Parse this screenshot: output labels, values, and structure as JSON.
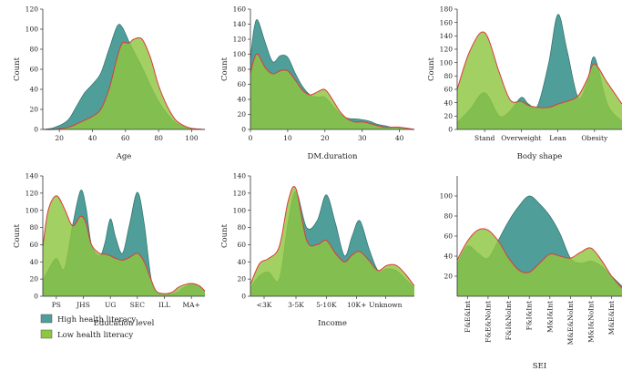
{
  "legend": {
    "high_label": "High health literacy",
    "low_label": "Low health literacy",
    "high_color": "#4f9e99",
    "low_color": "#8dc63f",
    "low_stroke": "#e0393e"
  },
  "chart_data": [
    {
      "type": "area",
      "xlabel": "Age",
      "ylabel": "Count",
      "xlim": [
        10,
        108
      ],
      "ylim": [
        0,
        120
      ],
      "xticks": [
        20,
        40,
        60,
        80,
        100
      ],
      "xtick_labels": [
        "20",
        "40",
        "60",
        "80",
        "100"
      ],
      "yticks": [
        0,
        20,
        40,
        60,
        80,
        100,
        120
      ],
      "series": [
        {
          "name": "High health literacy",
          "x": [
            10,
            17,
            25,
            30,
            35,
            40,
            45,
            50,
            55,
            58,
            62,
            65,
            70,
            75,
            80,
            85,
            90,
            95,
            100,
            108
          ],
          "y": [
            0,
            2,
            9,
            22,
            36,
            45,
            56,
            80,
            103,
            102,
            88,
            78,
            62,
            44,
            28,
            16,
            7,
            3,
            1,
            0
          ]
        },
        {
          "name": "Low health literacy",
          "x": [
            10,
            17,
            25,
            30,
            35,
            40,
            45,
            50,
            55,
            58,
            62,
            65,
            70,
            75,
            80,
            85,
            90,
            95,
            100,
            108
          ],
          "y": [
            0,
            0,
            2,
            5,
            9,
            13,
            20,
            40,
            72,
            86,
            86,
            90,
            90,
            72,
            44,
            24,
            10,
            4,
            1,
            0
          ]
        }
      ]
    },
    {
      "type": "area",
      "xlabel": "DM.duration",
      "ylabel": "Count",
      "xlim": [
        0,
        44
      ],
      "ylim": [
        0,
        160
      ],
      "xticks": [
        0,
        10,
        20,
        30,
        40
      ],
      "xtick_labels": [
        "0",
        "10",
        "20",
        "30",
        "40"
      ],
      "yticks": [
        0,
        20,
        40,
        60,
        80,
        100,
        120,
        140,
        160
      ],
      "series": [
        {
          "name": "High health literacy",
          "x": [
            0,
            1,
            2,
            4,
            6,
            8,
            10,
            12,
            14,
            16,
            18,
            20,
            22,
            24,
            26,
            28,
            30,
            32,
            34,
            36,
            38,
            40,
            44
          ],
          "y": [
            95,
            135,
            145,
            115,
            90,
            98,
            96,
            75,
            57,
            46,
            43,
            43,
            32,
            21,
            15,
            14,
            13,
            11,
            7,
            5,
            3,
            2,
            0
          ]
        },
        {
          "name": "Low health literacy",
          "x": [
            0,
            1,
            2,
            4,
            6,
            8,
            10,
            12,
            14,
            16,
            18,
            20,
            22,
            24,
            26,
            28,
            30,
            32,
            34,
            36,
            38,
            40,
            44
          ],
          "y": [
            75,
            94,
            100,
            82,
            74,
            78,
            78,
            66,
            52,
            46,
            50,
            53,
            40,
            24,
            14,
            10,
            10,
            8,
            5,
            3,
            3,
            3,
            0
          ]
        }
      ]
    },
    {
      "type": "area",
      "xlabel": "Body shape",
      "ylabel": "Count",
      "xlim": [
        0,
        4.5
      ],
      "ylim": [
        0,
        180
      ],
      "xticks": [
        0.75,
        1.75,
        2.75,
        3.75
      ],
      "xtick_labels": [
        "Stand",
        "Overweight",
        "Lean",
        "Obesity"
      ],
      "yticks": [
        0,
        20,
        40,
        60,
        80,
        100,
        120,
        140,
        160,
        180
      ],
      "series": [
        {
          "name": "High health literacy",
          "x": [
            0,
            0.35,
            0.75,
            1.15,
            1.45,
            1.75,
            1.95,
            2.2,
            2.5,
            2.75,
            3.0,
            3.3,
            3.55,
            3.75,
            4.1,
            4.5
          ],
          "y": [
            10,
            30,
            55,
            20,
            28,
            48,
            38,
            36,
            100,
            172,
            118,
            48,
            70,
            108,
            38,
            12
          ]
        },
        {
          "name": "Low health literacy",
          "x": [
            0,
            0.35,
            0.75,
            1.15,
            1.45,
            1.75,
            1.95,
            2.2,
            2.5,
            2.75,
            3.0,
            3.3,
            3.55,
            3.75,
            4.1,
            4.5
          ],
          "y": [
            60,
            118,
            145,
            85,
            44,
            42,
            36,
            33,
            33,
            38,
            42,
            50,
            75,
            98,
            70,
            38
          ]
        }
      ]
    },
    {
      "type": "area",
      "xlabel": "Education level",
      "ylabel": "Count",
      "xlim": [
        0,
        6
      ],
      "ylim": [
        0,
        140
      ],
      "xticks": [
        0.5,
        1.5,
        2.5,
        3.5,
        4.5,
        5.5
      ],
      "xtick_labels": [
        "PS",
        "JHS",
        "UG",
        "SEC",
        "ILL",
        "MA+"
      ],
      "yticks": [
        0,
        20,
        40,
        60,
        80,
        100,
        120,
        140
      ],
      "series": [
        {
          "name": "High health literacy",
          "x": [
            0,
            0.2,
            0.5,
            0.8,
            1.1,
            1.4,
            1.6,
            1.8,
            2.1,
            2.3,
            2.5,
            2.7,
            2.95,
            3.2,
            3.5,
            3.75,
            4.0,
            4.2,
            4.5,
            4.8,
            5.0,
            5.2,
            5.5,
            5.8,
            6.0
          ],
          "y": [
            18,
            30,
            44,
            32,
            82,
            123,
            103,
            60,
            47,
            62,
            90,
            68,
            50,
            82,
            121,
            85,
            22,
            6,
            3,
            3,
            5,
            10,
            14,
            12,
            5
          ]
        },
        {
          "name": "Low health literacy",
          "x": [
            0,
            0.2,
            0.5,
            0.8,
            1.1,
            1.4,
            1.6,
            1.8,
            2.1,
            2.3,
            2.5,
            2.7,
            2.95,
            3.2,
            3.5,
            3.75,
            4.0,
            4.2,
            4.5,
            4.8,
            5.0,
            5.2,
            5.5,
            5.8,
            6.0
          ],
          "y": [
            58,
            100,
            117,
            102,
            82,
            93,
            85,
            60,
            50,
            49,
            47,
            44,
            42,
            45,
            50,
            40,
            20,
            6,
            3,
            5,
            10,
            13,
            15,
            12,
            6
          ]
        }
      ]
    },
    {
      "type": "area",
      "xlabel": "Income",
      "ylabel": "Count",
      "xlim": [
        0,
        5.4
      ],
      "ylim": [
        0,
        140
      ],
      "xticks": [
        0.45,
        1.5,
        2.5,
        3.5,
        4.45
      ],
      "xtick_labels": [
        "<3K",
        "3-5K",
        "5-10K",
        "10K+",
        "Unknown"
      ],
      "yticks": [
        0,
        20,
        40,
        60,
        80,
        100,
        120,
        140
      ],
      "series": [
        {
          "name": "High health literacy",
          "x": [
            0,
            0.3,
            0.6,
            0.95,
            1.25,
            1.5,
            1.85,
            2.2,
            2.5,
            2.8,
            3.1,
            3.35,
            3.6,
            3.9,
            4.2,
            4.5,
            4.8,
            5.1,
            5.4
          ],
          "y": [
            10,
            24,
            28,
            20,
            88,
            122,
            80,
            88,
            118,
            85,
            47,
            70,
            88,
            56,
            30,
            32,
            30,
            20,
            10
          ]
        },
        {
          "name": "Low health literacy",
          "x": [
            0,
            0.3,
            0.6,
            0.95,
            1.25,
            1.5,
            1.85,
            2.2,
            2.5,
            2.8,
            3.1,
            3.35,
            3.6,
            3.9,
            4.2,
            4.5,
            4.8,
            5.1,
            5.4
          ],
          "y": [
            14,
            38,
            44,
            58,
            112,
            125,
            65,
            60,
            65,
            50,
            40,
            48,
            52,
            42,
            30,
            36,
            36,
            26,
            12
          ]
        }
      ]
    },
    {
      "type": "area",
      "xlabel": "SEI",
      "ylabel": "",
      "xlim": [
        0,
        8
      ],
      "ylim": [
        0,
        120
      ],
      "xticks": [
        0.5,
        1.5,
        2.5,
        3.5,
        4.5,
        5.5,
        6.5,
        7.5
      ],
      "xtick_labels": [
        "F&E&Int",
        "F&E&NoInt",
        "F&I&NoInt",
        "F&I&Int",
        "M&I&Int",
        "M&E&NoInt",
        "M&I&NoInt",
        "M&E&Int"
      ],
      "yticks": [
        20,
        40,
        60,
        80,
        100
      ],
      "series": [
        {
          "name": "High health literacy",
          "x": [
            0,
            0.5,
            1.0,
            1.5,
            2.0,
            2.5,
            3.0,
            3.5,
            4.0,
            4.5,
            5.0,
            5.5,
            6.0,
            6.5,
            7.0,
            7.5,
            8.0
          ],
          "y": [
            32,
            50,
            43,
            38,
            56,
            75,
            90,
            100,
            92,
            80,
            62,
            38,
            33,
            35,
            30,
            20,
            10
          ]
        },
        {
          "name": "Low health literacy",
          "x": [
            0,
            0.5,
            1.0,
            1.5,
            2.0,
            2.5,
            3.0,
            3.5,
            4.0,
            4.5,
            5.0,
            5.5,
            6.0,
            6.5,
            7.0,
            7.5,
            8.0
          ],
          "y": [
            36,
            55,
            66,
            66,
            55,
            38,
            26,
            24,
            33,
            42,
            40,
            38,
            44,
            48,
            36,
            20,
            8
          ]
        }
      ]
    }
  ]
}
